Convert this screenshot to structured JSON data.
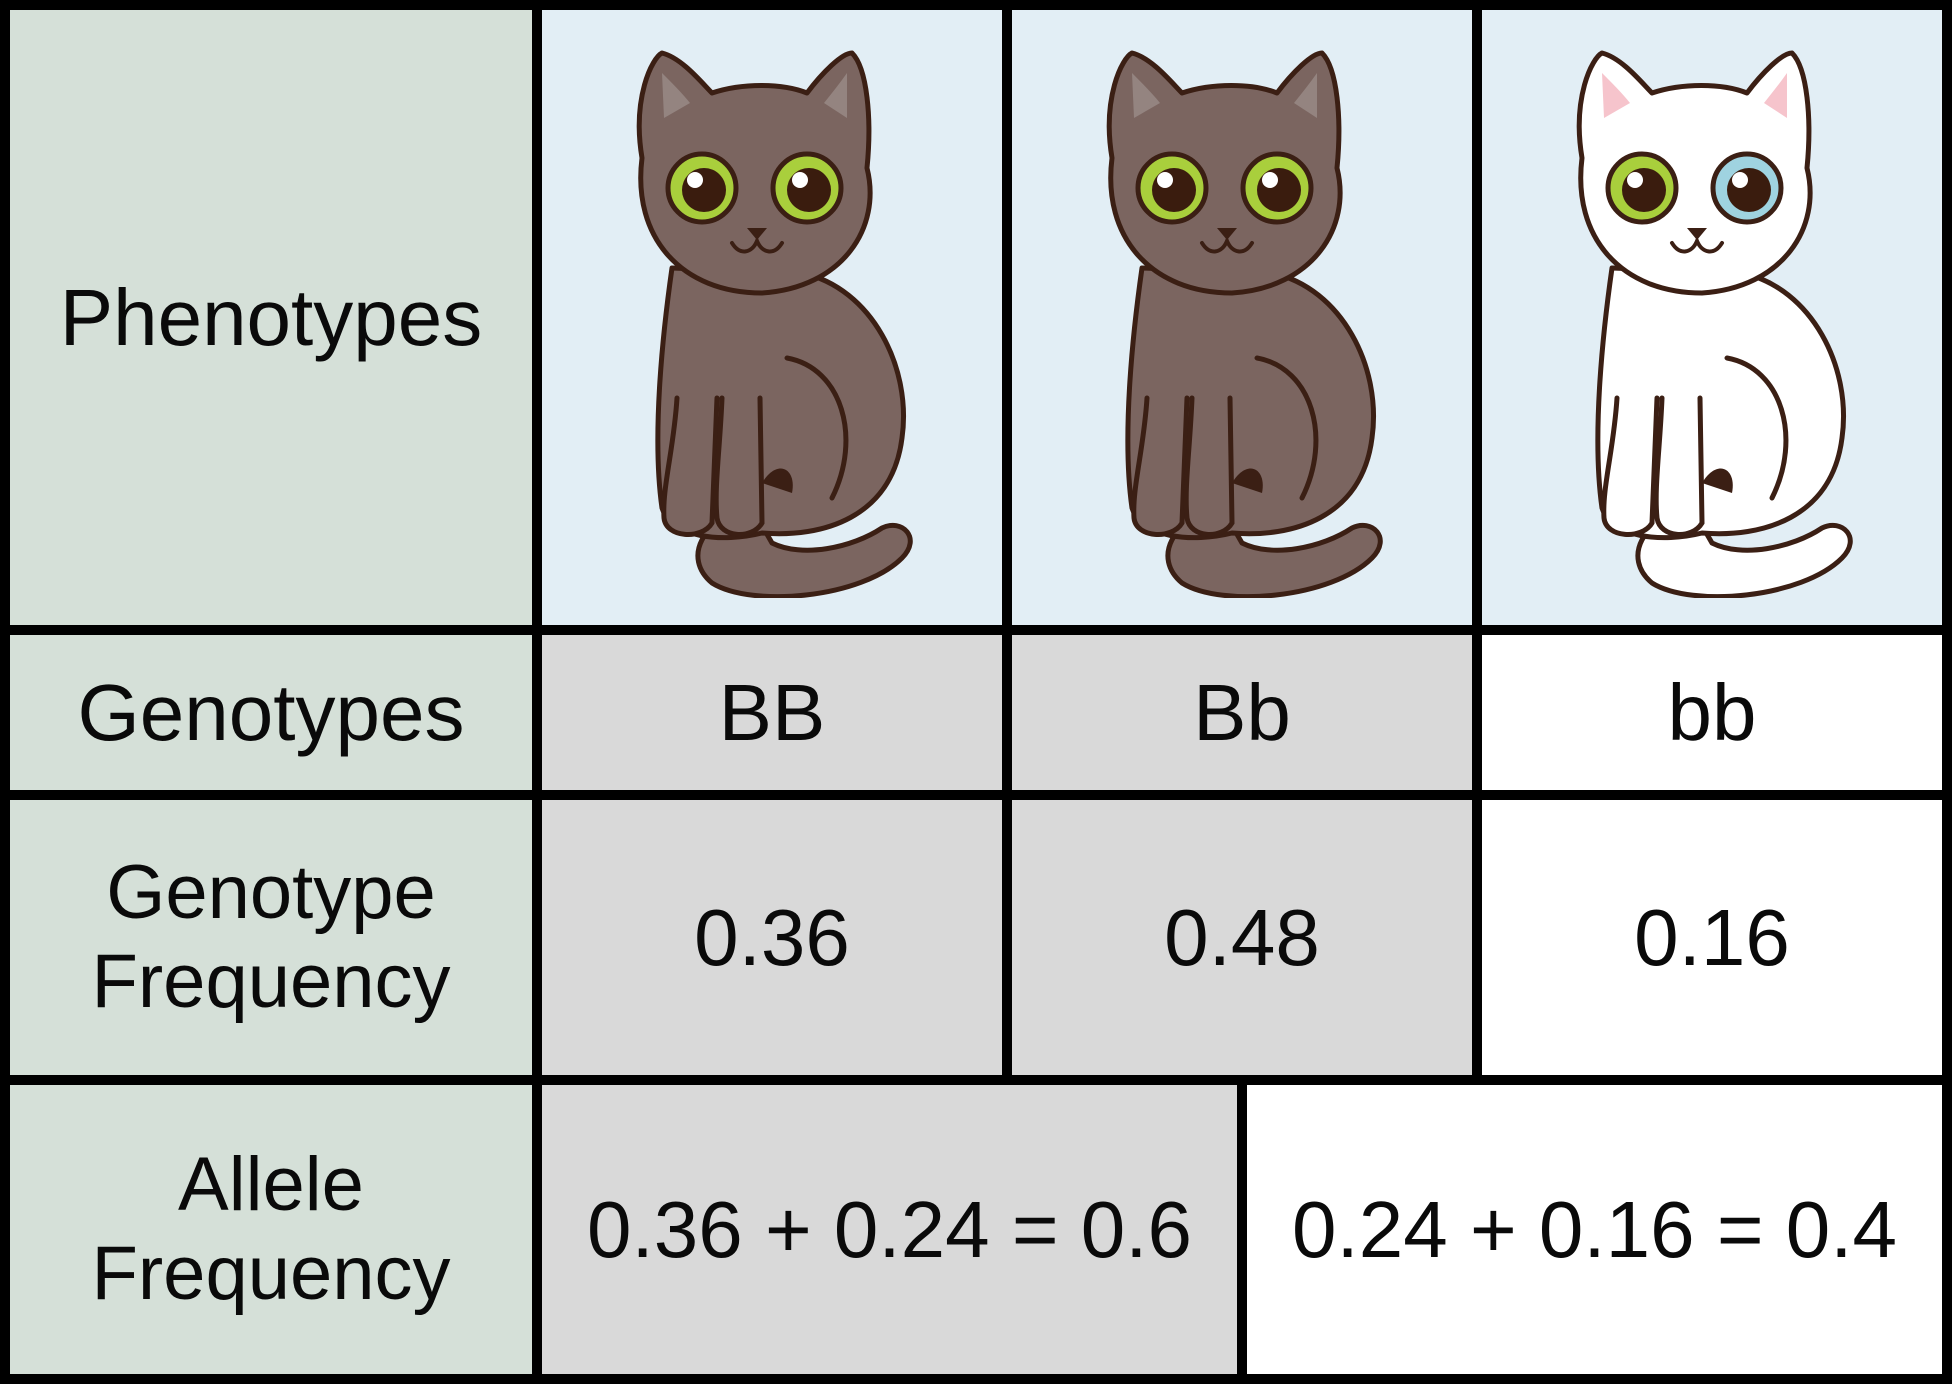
{
  "colors": {
    "label_bg": "#d5e0d8",
    "phenotype_bg": "#e2eef5",
    "dominant_bg": "#d9d9d9",
    "recessive_bg": "#ffffff",
    "border": "#000000",
    "dark_cat_fur": "#7b6560",
    "white_cat_fur": "#ffffff",
    "cat_outline": "#3b1f14",
    "green_eye": "#a9cf3c",
    "blue_eye": "#9fd3e0",
    "ear_pink": "#f6c4cc"
  },
  "table": {
    "rows": {
      "phenotypes": {
        "label": "Phenotypes",
        "cells": [
          {
            "icon": "dark-cat-icon",
            "fur": "dark"
          },
          {
            "icon": "dark-cat-icon",
            "fur": "dark"
          },
          {
            "icon": "white-cat-icon",
            "fur": "white"
          }
        ]
      },
      "genotypes": {
        "label": "Genotypes",
        "cells": [
          "BB",
          "Bb",
          "bb"
        ]
      },
      "genotype_frequency": {
        "label": "Genotype\nFrequency",
        "cells": [
          "0.36",
          "0.48",
          "0.16"
        ]
      },
      "allele_frequency": {
        "label": "Allele\nFrequency",
        "cells": [
          "0.36 + 0.24 = 0.6",
          "0.24 + 0.16 = 0.4"
        ]
      }
    }
  }
}
